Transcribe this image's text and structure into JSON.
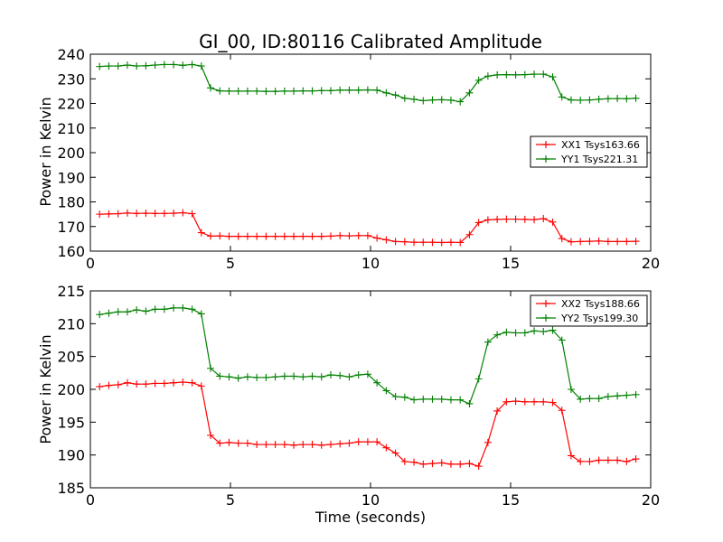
{
  "chart_data": [
    {
      "type": "line",
      "title": "GI_00, ID:80116 Calibrated Amplitude",
      "xlabel": "",
      "ylabel": "Power in Kelvin",
      "xlim": [
        0,
        20
      ],
      "ylim": [
        160,
        240
      ],
      "xticks": [
        0,
        5,
        10,
        15,
        20
      ],
      "yticks": [
        160,
        170,
        180,
        190,
        200,
        210,
        220,
        230,
        240
      ],
      "legend_position": "right",
      "x": [
        0.33,
        0.66,
        0.99,
        1.32,
        1.65,
        1.98,
        2.31,
        2.64,
        2.97,
        3.3,
        3.63,
        3.96,
        4.29,
        4.62,
        4.95,
        5.28,
        5.61,
        5.94,
        6.27,
        6.6,
        6.93,
        7.26,
        7.59,
        7.92,
        8.25,
        8.58,
        8.91,
        9.24,
        9.57,
        9.9,
        10.23,
        10.56,
        10.89,
        11.22,
        11.55,
        11.88,
        12.21,
        12.54,
        12.87,
        13.2,
        13.53,
        13.86,
        14.19,
        14.52,
        14.85,
        15.18,
        15.51,
        15.84,
        16.17,
        16.5,
        16.83,
        17.16,
        17.49,
        17.82,
        18.15,
        18.48,
        18.81,
        19.14,
        19.47
      ],
      "series": [
        {
          "name": "XX1 Tsys163.66",
          "color": "#ff0000",
          "values": [
            175.0,
            175.1,
            175.2,
            175.5,
            175.3,
            175.4,
            175.3,
            175.3,
            175.4,
            175.6,
            175.2,
            167.5,
            166.1,
            166.2,
            166.0,
            166.0,
            166.0,
            166.0,
            166.0,
            166.0,
            166.0,
            166.0,
            166.0,
            166.0,
            166.0,
            166.1,
            166.3,
            166.2,
            166.3,
            166.3,
            165.3,
            164.6,
            163.9,
            163.8,
            163.6,
            163.6,
            163.6,
            163.5,
            163.6,
            163.5,
            166.7,
            171.6,
            172.7,
            172.9,
            173.0,
            173.0,
            172.9,
            172.8,
            173.2,
            171.8,
            165.1,
            163.8,
            163.9,
            164.0,
            164.1,
            163.9,
            163.9,
            163.9,
            164.0
          ]
        },
        {
          "name": "YY1 Tsys221.31",
          "color": "#008000",
          "values": [
            235.0,
            235.2,
            235.2,
            235.6,
            235.2,
            235.3,
            235.6,
            235.8,
            235.8,
            235.5,
            235.8,
            235.2,
            226.3,
            225.1,
            225.0,
            225.0,
            225.0,
            225.0,
            224.9,
            224.9,
            225.0,
            225.0,
            225.1,
            225.1,
            225.2,
            225.2,
            225.4,
            225.4,
            225.4,
            225.5,
            225.4,
            224.3,
            223.4,
            222.1,
            221.7,
            221.1,
            221.4,
            221.5,
            221.3,
            220.7,
            224.3,
            229.4,
            231.1,
            231.6,
            231.7,
            231.6,
            231.7,
            231.9,
            231.9,
            230.8,
            222.6,
            221.4,
            221.3,
            221.4,
            221.7,
            221.9,
            222.0,
            221.9,
            222.1
          ]
        }
      ]
    },
    {
      "type": "line",
      "title": "",
      "xlabel": "Time (seconds)",
      "ylabel": "Power in Kelvin",
      "xlim": [
        0,
        20
      ],
      "ylim": [
        185,
        215
      ],
      "xticks": [
        0,
        5,
        10,
        15,
        20
      ],
      "yticks": [
        185,
        190,
        195,
        200,
        205,
        210,
        215
      ],
      "legend_position": "top-right",
      "x": [
        0.33,
        0.66,
        0.99,
        1.32,
        1.65,
        1.98,
        2.31,
        2.64,
        2.97,
        3.3,
        3.63,
        3.96,
        4.29,
        4.62,
        4.95,
        5.28,
        5.61,
        5.94,
        6.27,
        6.6,
        6.93,
        7.26,
        7.59,
        7.92,
        8.25,
        8.58,
        8.91,
        9.24,
        9.57,
        9.9,
        10.23,
        10.56,
        10.89,
        11.22,
        11.55,
        11.88,
        12.21,
        12.54,
        12.87,
        13.2,
        13.53,
        13.86,
        14.19,
        14.52,
        14.85,
        15.18,
        15.51,
        15.84,
        16.17,
        16.5,
        16.83,
        17.16,
        17.49,
        17.82,
        18.15,
        18.48,
        18.81,
        19.14,
        19.47
      ],
      "series": [
        {
          "name": "XX2 Tsys188.66",
          "color": "#ff0000",
          "values": [
            200.4,
            200.6,
            200.7,
            201.0,
            200.8,
            200.8,
            200.9,
            200.9,
            201.0,
            201.1,
            201.0,
            200.5,
            193.0,
            191.8,
            191.9,
            191.8,
            191.8,
            191.6,
            191.6,
            191.6,
            191.6,
            191.5,
            191.6,
            191.6,
            191.5,
            191.6,
            191.7,
            191.8,
            192.0,
            192.0,
            192.0,
            191.1,
            190.3,
            189.0,
            188.9,
            188.6,
            188.7,
            188.8,
            188.6,
            188.6,
            188.7,
            188.3,
            191.9,
            196.7,
            198.1,
            198.2,
            198.1,
            198.1,
            198.1,
            198.0,
            196.8,
            189.9,
            189.0,
            189.0,
            189.2,
            189.2,
            189.2,
            189.0,
            189.4
          ]
        },
        {
          "name": "YY2 Tsys199.30",
          "color": "#008000",
          "values": [
            211.4,
            211.6,
            211.8,
            211.8,
            212.1,
            211.9,
            212.2,
            212.2,
            212.4,
            212.4,
            212.2,
            211.5,
            203.2,
            202.0,
            201.9,
            201.7,
            201.9,
            201.8,
            201.8,
            201.9,
            202.0,
            202.0,
            201.9,
            202.0,
            201.9,
            202.2,
            202.1,
            201.9,
            202.2,
            202.3,
            201.0,
            199.8,
            198.9,
            198.8,
            198.4,
            198.5,
            198.5,
            198.5,
            198.4,
            198.4,
            197.8,
            201.6,
            207.2,
            208.3,
            208.7,
            208.6,
            208.6,
            208.9,
            208.8,
            209.0,
            207.5,
            200.0,
            198.5,
            198.6,
            198.6,
            198.9,
            199.0,
            199.1,
            199.2
          ]
        }
      ]
    }
  ]
}
